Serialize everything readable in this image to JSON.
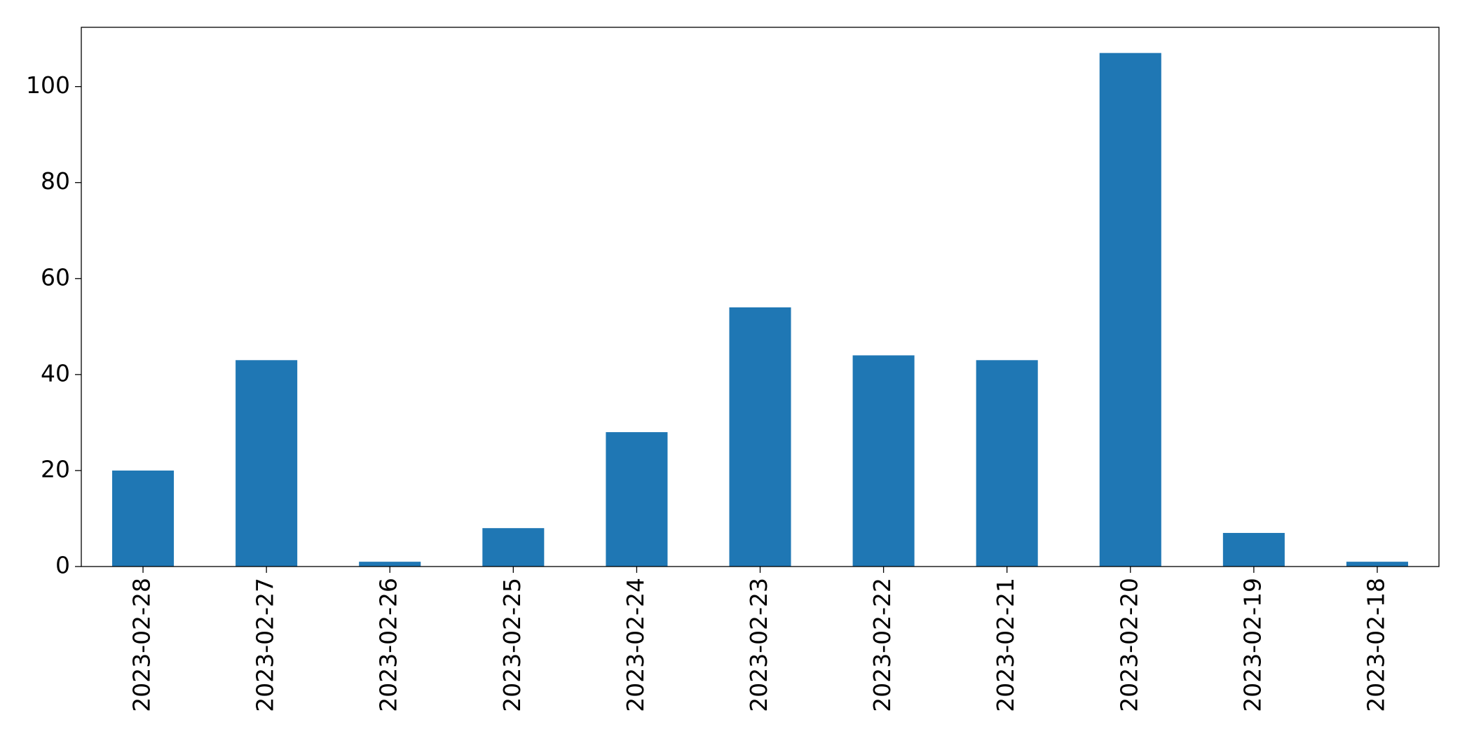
{
  "chart_data": {
    "type": "bar",
    "categories": [
      "2023-02-28",
      "2023-02-27",
      "2023-02-26",
      "2023-02-25",
      "2023-02-24",
      "2023-02-23",
      "2023-02-22",
      "2023-02-21",
      "2023-02-20",
      "2023-02-19",
      "2023-02-18"
    ],
    "values": [
      20,
      43,
      1,
      8,
      28,
      54,
      44,
      43,
      107,
      7,
      1
    ],
    "color": "#1f77b4",
    "ylim": [
      0,
      112.35
    ],
    "yticks": [
      0,
      20,
      40,
      60,
      80,
      100
    ],
    "grid": false
  }
}
